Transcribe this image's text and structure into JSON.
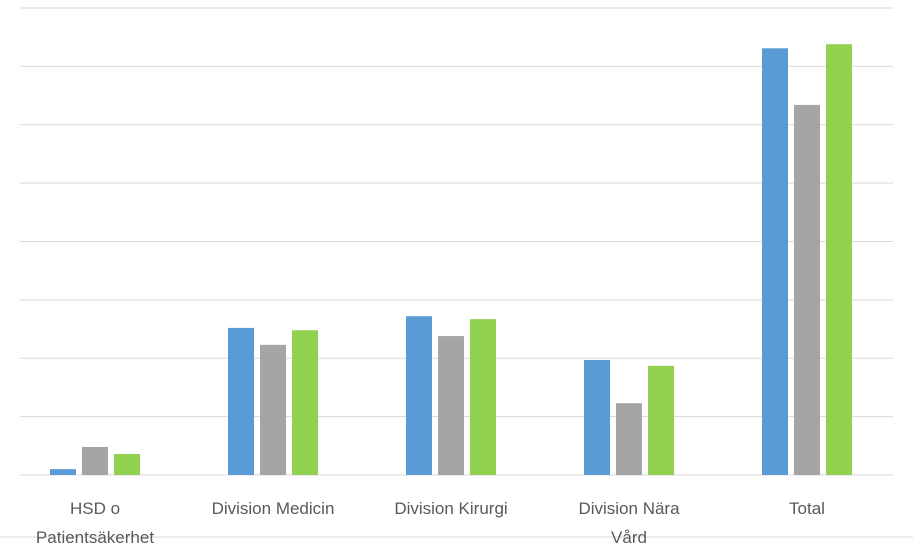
{
  "chart_data": {
    "type": "bar",
    "categories": [
      "HSD o Patientsäkerhet",
      "Division Medicin",
      "Division Kirurgi",
      "Division Nära Vård",
      "Total"
    ],
    "series": [
      {
        "color": "#5b9bd5",
        "values": [
          0.1,
          2.52,
          2.72,
          1.97,
          7.31
        ]
      },
      {
        "color": "#a5a5a5",
        "values": [
          0.48,
          2.23,
          2.38,
          1.23,
          6.34
        ]
      },
      {
        "color": "#92d050",
        "values": [
          0.36,
          2.48,
          2.67,
          1.87,
          7.38
        ]
      }
    ],
    "ylim": [
      0,
      8
    ],
    "yticks": [
      0,
      1,
      2,
      3,
      4,
      5,
      6,
      7,
      8
    ],
    "grid": true
  }
}
